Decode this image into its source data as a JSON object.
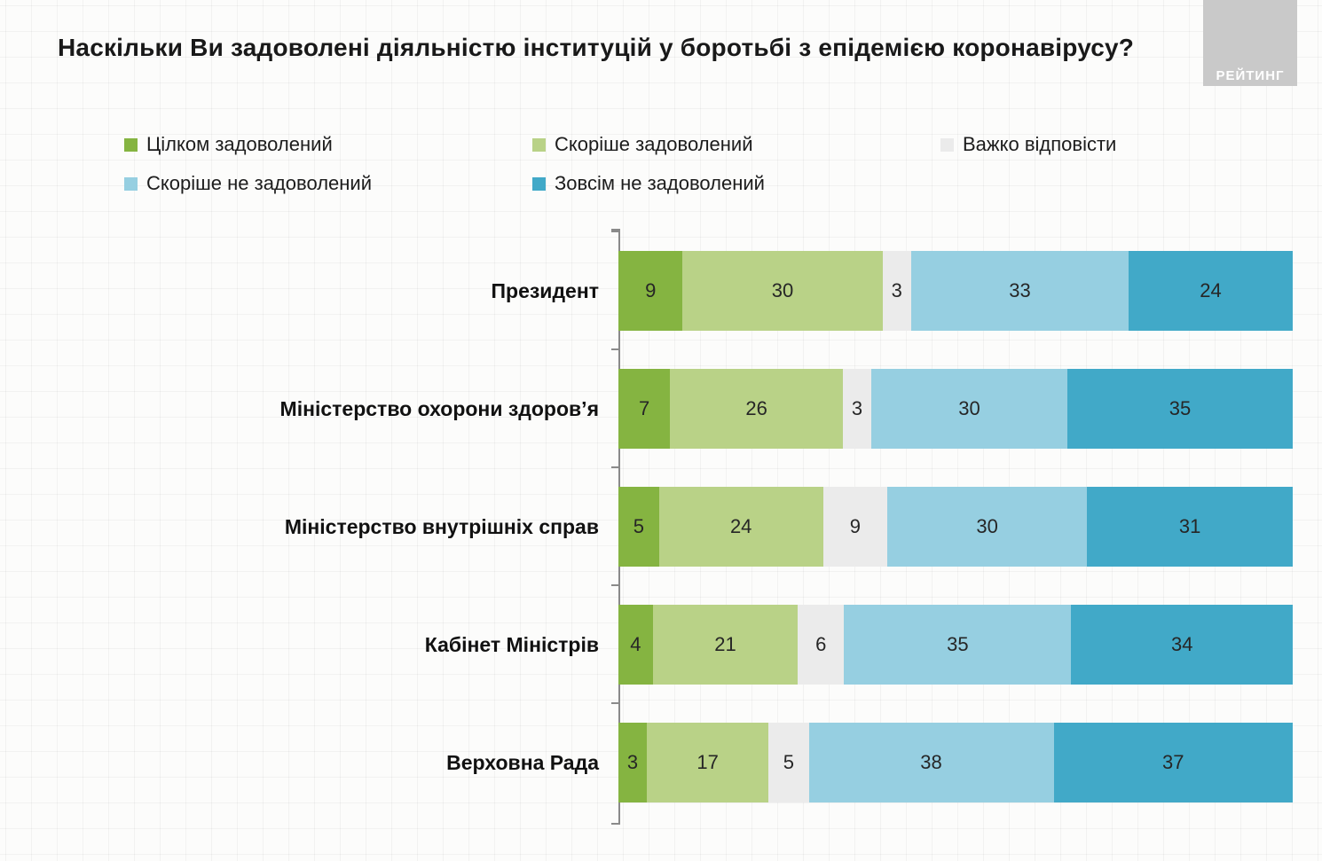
{
  "title": "Наскільки Ви задоволені діяльністю інституцій у боротьбі з епідемією коронавірусу?",
  "logo": {
    "text": "РЕЙТИНГ",
    "background": "#c9c9c9"
  },
  "chart_data": {
    "type": "bar",
    "stacked": true,
    "orientation": "horizontal",
    "title": "Наскільки Ви задоволені діяльністю інституцій у боротьбі з епідемією коронавірусу?",
    "legend_position": "top",
    "value_labels": true,
    "xlim": [
      0,
      100
    ],
    "categories": [
      "Президент",
      "Міністерство охорони здоров’я",
      "Міністерство внутрішніх справ",
      "Кабінет Міністрів",
      "Верховна Рада"
    ],
    "series": [
      {
        "name": "Цілком задоволений",
        "color": "#85b441",
        "values": [
          9,
          7,
          5,
          4,
          3
        ]
      },
      {
        "name": "Скоріше задоволений",
        "color": "#b9d287",
        "values": [
          30,
          26,
          24,
          21,
          17
        ]
      },
      {
        "name": "Важко відповісти",
        "color": "#ebebeb",
        "values": [
          3,
          3,
          9,
          6,
          5
        ]
      },
      {
        "name": "Скоріше не задоволений",
        "color": "#96cfe1",
        "values": [
          33,
          30,
          30,
          35,
          38
        ]
      },
      {
        "name": "Зовсім не задоволений",
        "color": "#41a9c8",
        "values": [
          24,
          35,
          31,
          34,
          37
        ]
      }
    ]
  }
}
